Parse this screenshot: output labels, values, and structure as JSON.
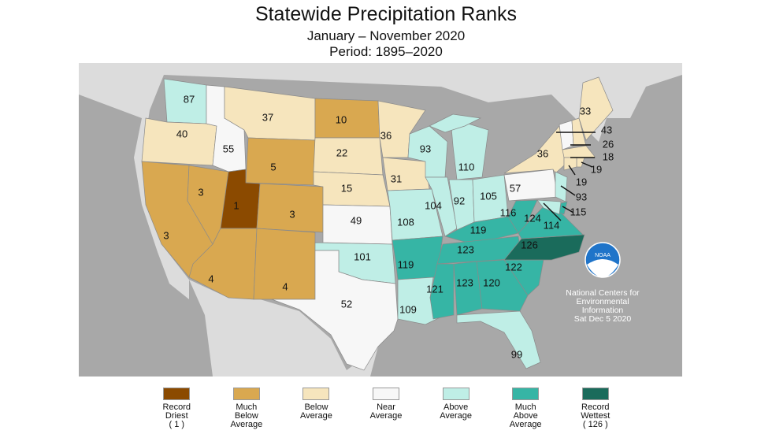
{
  "title": "Statewide Precipitation Ranks",
  "subtitle": "January – November 2020",
  "period": "Period: 1895–2020",
  "colors": {
    "ocean": "#a8a8a8",
    "land": "#dcdcdc",
    "logo": "#1f74c9"
  },
  "legend": [
    {
      "lines": [
        "Record",
        "Driest",
        "( 1 )"
      ],
      "color": "#8b4a00"
    },
    {
      "lines": [
        "Much",
        "Below",
        "Average"
      ],
      "color": "#d9a850"
    },
    {
      "lines": [
        "Below",
        "Average",
        ""
      ],
      "color": "#f6e5bd"
    },
    {
      "lines": [
        "Near",
        "Average",
        ""
      ],
      "color": "#f7f7f7"
    },
    {
      "lines": [
        "Above",
        "Average",
        ""
      ],
      "color": "#bfeee6"
    },
    {
      "lines": [
        "Much",
        "Above",
        "Average"
      ],
      "color": "#36b5a5"
    },
    {
      "lines": [
        "Record",
        "Wettest",
        "( 126 )"
      ],
      "color": "#1a6b5b"
    }
  ],
  "logo": {
    "text": "NOAA",
    "credit": [
      "National Centers for",
      "Environmental",
      "Information",
      "Sat Dec  5 2020"
    ]
  },
  "states": [
    {
      "abbr": "WA",
      "rank": 87,
      "cat": 4
    },
    {
      "abbr": "OR",
      "rank": 40,
      "cat": 2
    },
    {
      "abbr": "CA",
      "rank": 3,
      "cat": 1
    },
    {
      "abbr": "NV",
      "rank": 3,
      "cat": 1
    },
    {
      "abbr": "ID",
      "rank": 55,
      "cat": 3
    },
    {
      "abbr": "MT",
      "rank": 37,
      "cat": 2
    },
    {
      "abbr": "WY",
      "rank": 5,
      "cat": 1
    },
    {
      "abbr": "UT",
      "rank": 1,
      "cat": 0
    },
    {
      "abbr": "CO",
      "rank": 3,
      "cat": 1
    },
    {
      "abbr": "AZ",
      "rank": 4,
      "cat": 1
    },
    {
      "abbr": "NM",
      "rank": 4,
      "cat": 1
    },
    {
      "abbr": "ND",
      "rank": 10,
      "cat": 1
    },
    {
      "abbr": "SD",
      "rank": 22,
      "cat": 2
    },
    {
      "abbr": "NE",
      "rank": 15,
      "cat": 2
    },
    {
      "abbr": "KS",
      "rank": 49,
      "cat": 3
    },
    {
      "abbr": "OK",
      "rank": 101,
      "cat": 4
    },
    {
      "abbr": "TX",
      "rank": 52,
      "cat": 3
    },
    {
      "abbr": "MN",
      "rank": 36,
      "cat": 2
    },
    {
      "abbr": "IA",
      "rank": 31,
      "cat": 2
    },
    {
      "abbr": "MO",
      "rank": 108,
      "cat": 4
    },
    {
      "abbr": "AR",
      "rank": 119,
      "cat": 5
    },
    {
      "abbr": "LA",
      "rank": 109,
      "cat": 4
    },
    {
      "abbr": "WI",
      "rank": 93,
      "cat": 4
    },
    {
      "abbr": "IL",
      "rank": 104,
      "cat": 4
    },
    {
      "abbr": "MI",
      "rank": 110,
      "cat": 4
    },
    {
      "abbr": "IN",
      "rank": 92,
      "cat": 4
    },
    {
      "abbr": "OH",
      "rank": 105,
      "cat": 4
    },
    {
      "abbr": "KY",
      "rank": 119,
      "cat": 5
    },
    {
      "abbr": "TN",
      "rank": 123,
      "cat": 5
    },
    {
      "abbr": "MS",
      "rank": 121,
      "cat": 5
    },
    {
      "abbr": "AL",
      "rank": 123,
      "cat": 5
    },
    {
      "abbr": "GA",
      "rank": 120,
      "cat": 5
    },
    {
      "abbr": "FL",
      "rank": 99,
      "cat": 4
    },
    {
      "abbr": "SC",
      "rank": 122,
      "cat": 5
    },
    {
      "abbr": "NC",
      "rank": 126,
      "cat": 6
    },
    {
      "abbr": "VA",
      "rank": 124,
      "cat": 5
    },
    {
      "abbr": "WV",
      "rank": 116,
      "cat": 5
    },
    {
      "abbr": "PA",
      "rank": 57,
      "cat": 3
    },
    {
      "abbr": "NY",
      "rank": 36,
      "cat": 2
    },
    {
      "abbr": "VT",
      "rank": 43,
      "cat": 3
    },
    {
      "abbr": "NH",
      "rank": 26,
      "cat": 2
    },
    {
      "abbr": "ME",
      "rank": 33,
      "cat": 2
    },
    {
      "abbr": "MA",
      "rank": 18,
      "cat": 2
    },
    {
      "abbr": "RI",
      "rank": 19,
      "cat": 2
    },
    {
      "abbr": "CT",
      "rank": 19,
      "cat": 2
    },
    {
      "abbr": "NJ",
      "rank": 93,
      "cat": 4
    },
    {
      "abbr": "DE",
      "rank": 115,
      "cat": 5
    },
    {
      "abbr": "MD",
      "rank": 114,
      "cat": 4
    }
  ]
}
